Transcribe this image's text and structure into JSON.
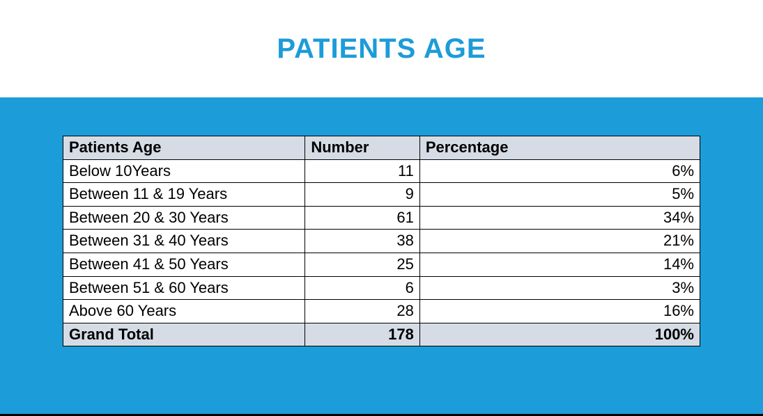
{
  "colors": {
    "title": "#1c9cd8",
    "band_bg": "#1c9cd8",
    "header_row_bg": "#d6dce5",
    "total_row_bg": "#d6dce5",
    "body_row_bg": "#ffffff",
    "text": "#000000"
  },
  "title": "PATIENTS AGE",
  "table": {
    "columns": [
      "Patients Age",
      "Number",
      "Percentage"
    ],
    "rows": [
      {
        "age": "Below 10Years",
        "number": "11",
        "percentage": "6%"
      },
      {
        "age": "Between 11 & 19 Years",
        "number": "9",
        "percentage": "5%"
      },
      {
        "age": "Between 20 & 30 Years",
        "number": "61",
        "percentage": "34%"
      },
      {
        "age": "Between 31 & 40 Years",
        "number": "38",
        "percentage": "21%"
      },
      {
        "age": "Between 41 & 50 Years",
        "number": "25",
        "percentage": "14%"
      },
      {
        "age": "Between 51 & 60 Years",
        "number": "6",
        "percentage": "3%"
      },
      {
        "age": "Above 60 Years",
        "number": "28",
        "percentage": "16%"
      }
    ],
    "total": {
      "age": "Grand Total",
      "number": "178",
      "percentage": "100%"
    }
  }
}
